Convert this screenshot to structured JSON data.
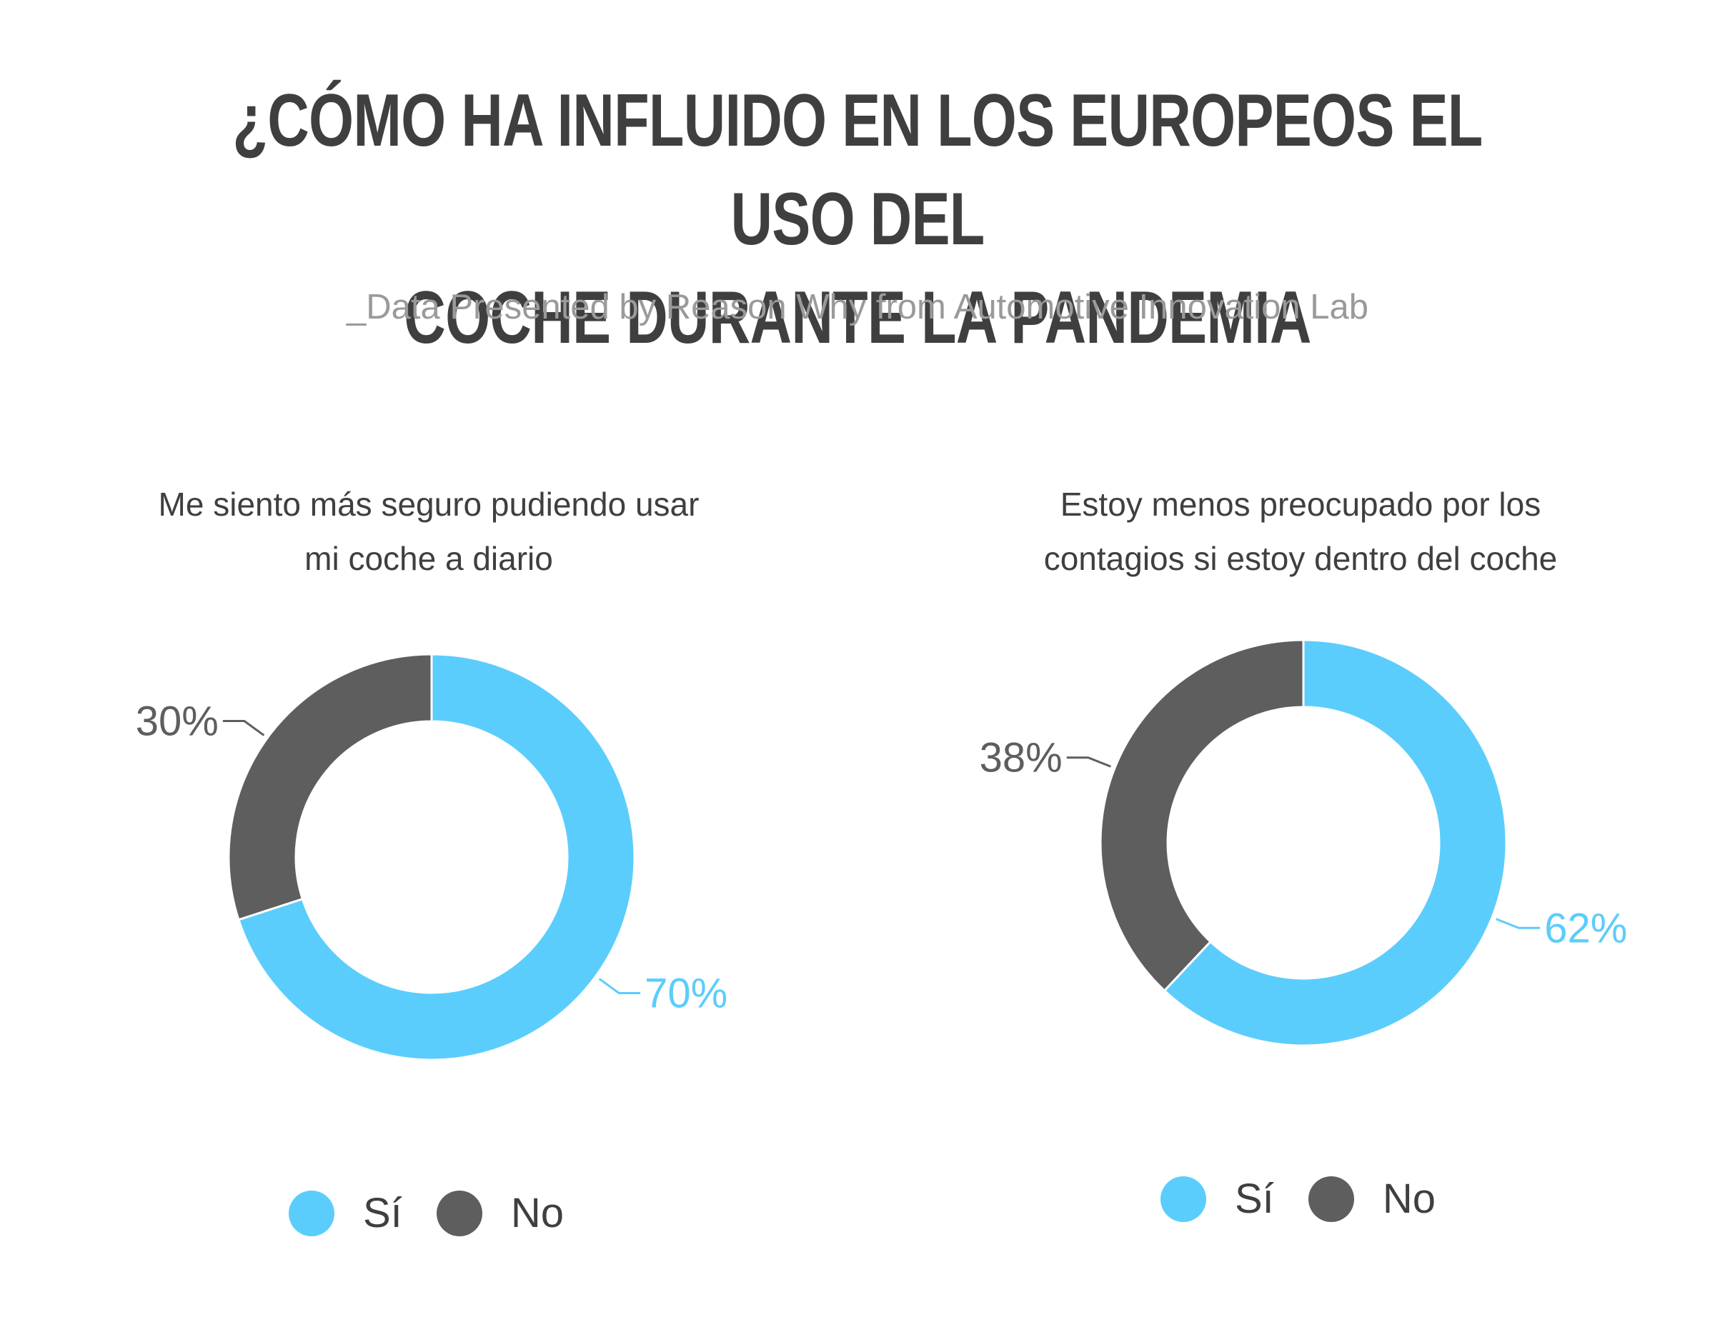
{
  "header": {
    "title_line1": "¿CÓMO HA INFLUIDO EN LOS EUROPEOS EL USO DEL",
    "title_line2": "COCHE DURANTE LA PANDEMIA",
    "subtitle": "_Data Presented by Reason Why from Automotive Innovation Lab"
  },
  "colors": {
    "si": "#5bcdfc",
    "no": "#5e5e5e"
  },
  "chart_data": [
    {
      "type": "pie",
      "title_line1": "Me siento más seguro pudiendo usar",
      "title_line2": "mi coche a diario",
      "categories": [
        "Sí",
        "No"
      ],
      "values": [
        70,
        30
      ],
      "labels": [
        "70%",
        "30%"
      ],
      "legend": "bottom"
    },
    {
      "type": "pie",
      "title_line1": "Estoy menos preocupado por los",
      "title_line2": "contagios si estoy dentro del coche",
      "categories": [
        "Sí",
        "No"
      ],
      "values": [
        62,
        38
      ],
      "labels": [
        "62%",
        "38%"
      ],
      "legend": "bottom"
    }
  ]
}
